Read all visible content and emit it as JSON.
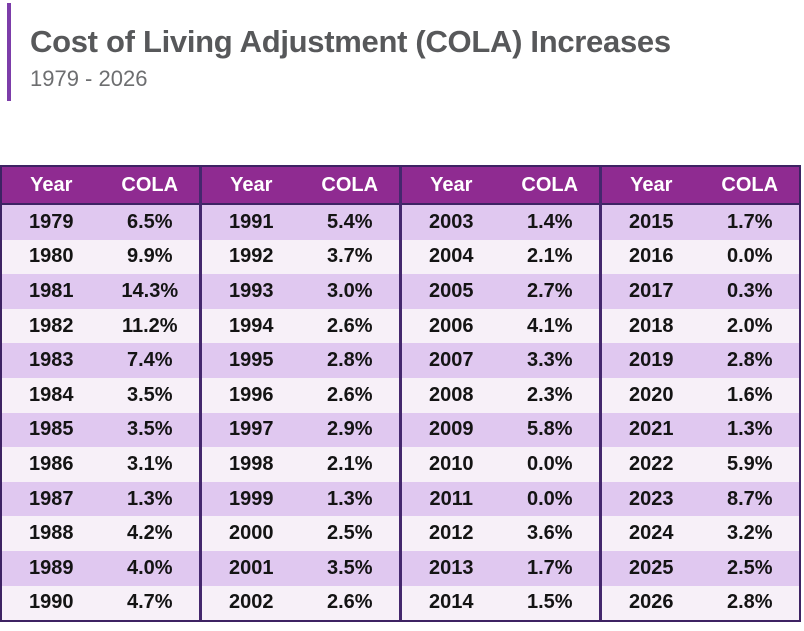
{
  "header": {
    "title": "Cost of Living Adjustment (COLA) Increases",
    "subtitle": "1979 - 2026"
  },
  "colors": {
    "accent_bar": "#7c3da9",
    "table_header_bg": "#8f2b91",
    "row_odd_bg": "#e0c8f0",
    "row_even_bg": "#f7f0f8",
    "table_border": "#3d2363",
    "header_text": "#ffffff",
    "cell_text": "#141414",
    "title_text": "#57585a",
    "subtitle_text": "#6d6e70"
  },
  "chart_data": {
    "type": "table",
    "title": "Cost of Living Adjustment (COLA) Increases",
    "subtitle": "1979 - 2026",
    "column_headers": [
      "Year",
      "COLA"
    ],
    "layout": "4 side-by-side year/COLA column groups, alternating striped rows",
    "groups": [
      {
        "rows": [
          [
            "1979",
            "6.5%"
          ],
          [
            "1980",
            "9.9%"
          ],
          [
            "1981",
            "14.3%"
          ],
          [
            "1982",
            "11.2%"
          ],
          [
            "1983",
            "7.4%"
          ],
          [
            "1984",
            "3.5%"
          ],
          [
            "1985",
            "3.5%"
          ],
          [
            "1986",
            "3.1%"
          ],
          [
            "1987",
            "1.3%"
          ],
          [
            "1988",
            "4.2%"
          ],
          [
            "1989",
            "4.0%"
          ],
          [
            "1990",
            "4.7%"
          ]
        ]
      },
      {
        "rows": [
          [
            "1991",
            "5.4%"
          ],
          [
            "1992",
            "3.7%"
          ],
          [
            "1993",
            "3.0%"
          ],
          [
            "1994",
            "2.6%"
          ],
          [
            "1995",
            "2.8%"
          ],
          [
            "1996",
            "2.6%"
          ],
          [
            "1997",
            "2.9%"
          ],
          [
            "1998",
            "2.1%"
          ],
          [
            "1999",
            "1.3%"
          ],
          [
            "2000",
            "2.5%"
          ],
          [
            "2001",
            "3.5%"
          ],
          [
            "2002",
            "2.6%"
          ]
        ]
      },
      {
        "rows": [
          [
            "2003",
            "1.4%"
          ],
          [
            "2004",
            "2.1%"
          ],
          [
            "2005",
            "2.7%"
          ],
          [
            "2006",
            "4.1%"
          ],
          [
            "2007",
            "3.3%"
          ],
          [
            "2008",
            "2.3%"
          ],
          [
            "2009",
            "5.8%"
          ],
          [
            "2010",
            "0.0%"
          ],
          [
            "2011",
            "0.0%"
          ],
          [
            "2012",
            "3.6%"
          ],
          [
            "2013",
            "1.7%"
          ],
          [
            "2014",
            "1.5%"
          ]
        ]
      },
      {
        "rows": [
          [
            "2015",
            "1.7%"
          ],
          [
            "2016",
            "0.0%"
          ],
          [
            "2017",
            "0.3%"
          ],
          [
            "2018",
            "2.0%"
          ],
          [
            "2019",
            "2.8%"
          ],
          [
            "2020",
            "1.6%"
          ],
          [
            "2021",
            "1.3%"
          ],
          [
            "2022",
            "5.9%"
          ],
          [
            "2023",
            "8.7%"
          ],
          [
            "2024",
            "3.2%"
          ],
          [
            "2025",
            "2.5%"
          ],
          [
            "2026",
            "2.8%"
          ]
        ]
      }
    ]
  }
}
